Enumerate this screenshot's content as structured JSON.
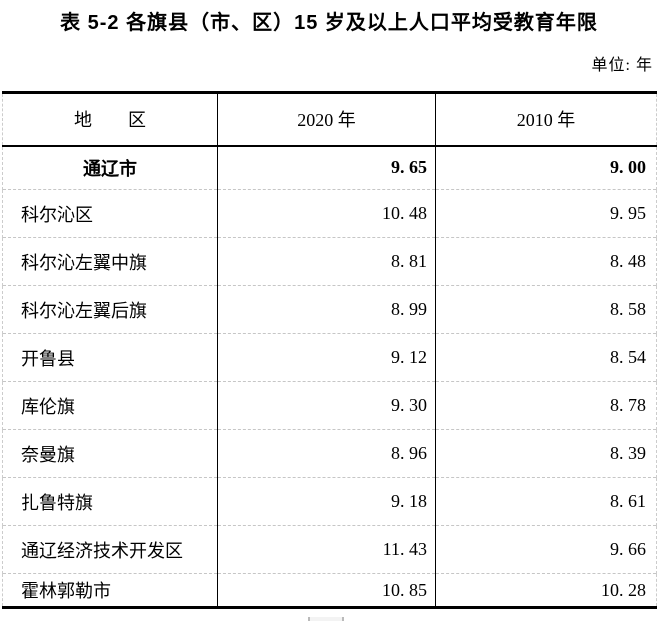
{
  "page": {
    "title": "表 5-2 各旗县（市、区）15 岁及以上人口平均受教育年限",
    "unit_label": "单位: 年"
  },
  "table": {
    "columns": {
      "region": "地　　区",
      "y2020": "2020 年",
      "y2010": "2010 年"
    },
    "rows": [
      {
        "region": "通辽市",
        "y2020": "9. 65",
        "y2010": "9. 00"
      },
      {
        "region": "科尔沁区",
        "y2020": "10. 48",
        "y2010": "9. 95"
      },
      {
        "region": "科尔沁左翼中旗",
        "y2020": "8. 81",
        "y2010": "8. 48"
      },
      {
        "region": "科尔沁左翼后旗",
        "y2020": "8. 99",
        "y2010": "8. 58"
      },
      {
        "region": "开鲁县",
        "y2020": "9. 12",
        "y2010": "8. 54"
      },
      {
        "region": "库伦旗",
        "y2020": "9. 30",
        "y2010": "8. 78"
      },
      {
        "region": "奈曼旗",
        "y2020": "8. 96",
        "y2010": "8. 39"
      },
      {
        "region": "扎鲁特旗",
        "y2020": "9. 18",
        "y2010": "8. 61"
      },
      {
        "region": "通辽经济技术开发区",
        "y2020": "11. 43",
        "y2010": "9. 66"
      },
      {
        "region": "霍林郭勒市",
        "y2020": "10. 85",
        "y2010": "10. 28"
      }
    ]
  }
}
